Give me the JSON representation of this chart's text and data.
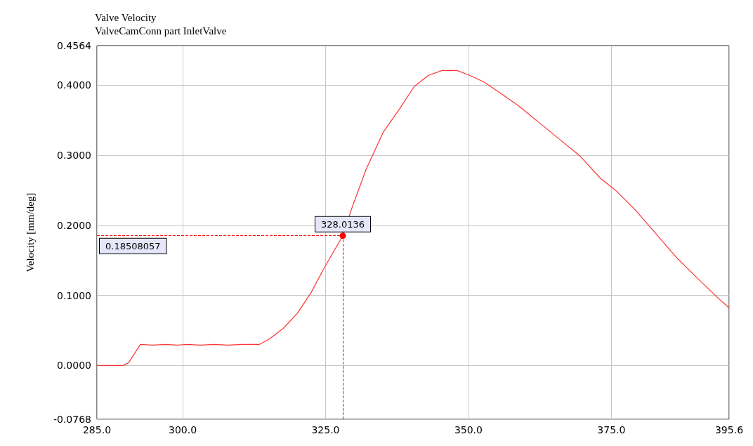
{
  "chart_data": {
    "type": "line",
    "title": "Valve Velocity",
    "subtitle": "ValveCamConn part InletValve",
    "ylabel": "Velocity [mm/deg]",
    "x": [
      285,
      289.6,
      290.55,
      292.6,
      294.7,
      297.1,
      298.9,
      300.7,
      303.1,
      305.5,
      307.9,
      310.4,
      313.4,
      315.2,
      317.6,
      320.0,
      322.4,
      324.8,
      328.0136,
      329.7,
      332.1,
      335.1,
      338.1,
      340.5,
      343.0,
      345.4,
      348.0,
      350.2,
      352.6,
      355.0,
      358.7,
      362.3,
      365.9,
      369.5,
      373.1,
      375.6,
      379.2,
      382.8,
      386.4,
      390.0,
      393.7,
      395.6
    ],
    "series": [
      {
        "color": "#ff3333",
        "values": [
          0,
          0,
          0.004,
          0.03,
          0.029,
          0.03,
          0.029,
          0.03,
          0.029,
          0.03,
          0.029,
          0.03,
          0.03,
          0.038,
          0.053,
          0.074,
          0.103,
          0.14,
          0.185,
          0.227,
          0.28,
          0.333,
          0.368,
          0.398,
          0.414,
          0.421,
          0.421,
          0.414,
          0.405,
          0.392,
          0.371,
          0.347,
          0.323,
          0.299,
          0.267,
          0.251,
          0.222,
          0.188,
          0.154,
          0.125,
          0.096,
          0.082
        ]
      }
    ],
    "xlim": [
      285.0,
      395.6
    ],
    "xticks": [
      {
        "value": 285,
        "label": "285.0"
      },
      {
        "value": 300,
        "label": "300.0"
      },
      {
        "value": 325,
        "label": "325.0"
      },
      {
        "value": 350,
        "label": "350.0"
      },
      {
        "value": 375,
        "label": "375.0"
      },
      395.6
    ],
    "ylim": [
      -0.0768,
      0.4564
    ],
    "yticks": [
      -0.0768,
      {
        "value": 0,
        "label": "0.0000"
      },
      {
        "value": 0.1,
        "label": "0.1000"
      },
      {
        "value": 0.2,
        "label": "0.2000"
      },
      {
        "value": 0.3,
        "label": "0.3000"
      },
      {
        "value": 0.4,
        "label": "0.4000"
      },
      0.4564
    ],
    "ref_lines": [
      {
        "axis": "x",
        "value": 328.0136,
        "label": "328.0136",
        "color": "#ff0000",
        "line_style": "dashed"
      },
      {
        "axis": "y",
        "value": 0.18508057,
        "label": "0.18508057",
        "color": "#ff0000",
        "line_style": "dashed"
      }
    ],
    "grid": true,
    "marker": "none",
    "line_style": "solid"
  }
}
